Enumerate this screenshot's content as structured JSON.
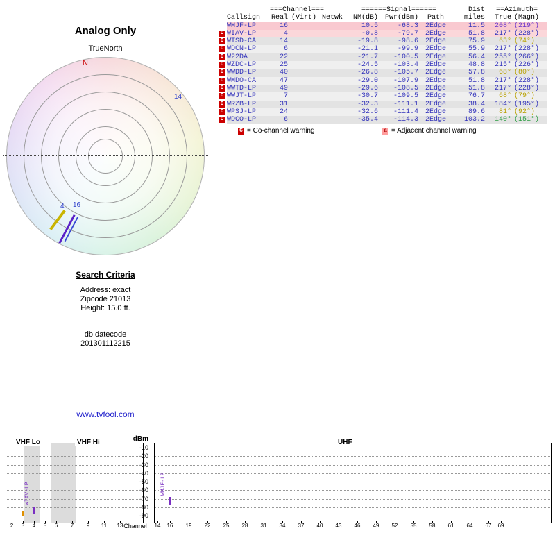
{
  "link_text": "www.tvfool.com",
  "search": {
    "title": "Search Criteria",
    "lines": [
      "Address: exact",
      "Zipcode 21013",
      "Height: 15.0 ft.",
      "",
      "",
      "db datecode",
      "201301112215"
    ]
  },
  "chart_data": [
    {
      "id": "compass",
      "type": "radar",
      "title": "Analog Only",
      "subtitle": "TrueNorth",
      "north_label": "N",
      "rings": 6,
      "markers": [
        {
          "label": "14",
          "azimuth_true_deg": 63,
          "style": "text",
          "color": "#3344cc"
        },
        {
          "label": "4",
          "azimuth_true_deg": 217,
          "style": "line",
          "color": "#c9b400"
        },
        {
          "label": "16",
          "azimuth_true_deg": 208,
          "style": "line",
          "color": "#5b21c8"
        }
      ]
    },
    {
      "id": "stations",
      "type": "table",
      "header_groups": [
        "===Channel===",
        "======Signal======",
        "Dist",
        "==Azimuth="
      ],
      "columns": [
        "Callsign",
        "Real",
        "(Virt)",
        "Netwk",
        "NM(dB)",
        "Pwr(dBm)",
        "Path",
        "miles",
        "True",
        "(Magn)"
      ],
      "rows": [
        {
          "warn": "",
          "callsign": "WMJF-LP",
          "real": "16",
          "virt": "",
          "netwk": "",
          "nm": "10.5",
          "pwr": "-68.3",
          "path": "2Edge",
          "miles": "11.5",
          "true": "208°",
          "magn": "(219°)",
          "bg": "#f9c9d0",
          "az_color": "#6a35cc"
        },
        {
          "warn": "C",
          "callsign": "WIAV-LP",
          "real": "4",
          "virt": "",
          "netwk": "",
          "nm": "-0.8",
          "pwr": "-79.7",
          "path": "2Edge",
          "miles": "51.8",
          "true": "217°",
          "magn": "(228°)",
          "bg": "#fbd7da",
          "az_color": "#3333bb"
        },
        {
          "warn": "C",
          "callsign": "WTSD-CA",
          "real": "14",
          "virt": "",
          "netwk": "",
          "nm": "-19.8",
          "pwr": "-98.6",
          "path": "2Edge",
          "miles": "75.9",
          "true": "63°",
          "magn": "(74°)",
          "bg": "#e3e3e3",
          "az_color": "#b8a000"
        },
        {
          "warn": "C",
          "callsign": "WDCN-LP",
          "real": "6",
          "virt": "",
          "netwk": "",
          "nm": "-21.1",
          "pwr": "-99.9",
          "path": "2Edge",
          "miles": "55.9",
          "true": "217°",
          "magn": "(228°)",
          "bg": "#efefef",
          "az_color": "#3333bb"
        },
        {
          "warn": "C",
          "callsign": "W22DA",
          "real": "22",
          "virt": "",
          "netwk": "",
          "nm": "-21.7",
          "pwr": "-100.5",
          "path": "2Edge",
          "miles": "56.4",
          "true": "255°",
          "magn": "(266°)",
          "bg": "#e3e3e3",
          "az_color": "#3333bb"
        },
        {
          "warn": "C",
          "callsign": "WZDC-LP",
          "real": "25",
          "virt": "",
          "netwk": "",
          "nm": "-24.5",
          "pwr": "-103.4",
          "path": "2Edge",
          "miles": "48.8",
          "true": "215°",
          "magn": "(226°)",
          "bg": "#efefef",
          "az_color": "#3333bb"
        },
        {
          "warn": "C",
          "callsign": "WWDD-LP",
          "real": "40",
          "virt": "",
          "netwk": "",
          "nm": "-26.8",
          "pwr": "-105.7",
          "path": "2Edge",
          "miles": "57.8",
          "true": "68°",
          "magn": "(80°)",
          "bg": "#e3e3e3",
          "az_color": "#b8a000"
        },
        {
          "warn": "C",
          "callsign": "WMDO-CA",
          "real": "47",
          "virt": "",
          "netwk": "",
          "nm": "-29.0",
          "pwr": "-107.9",
          "path": "2Edge",
          "miles": "51.8",
          "true": "217°",
          "magn": "(228°)",
          "bg": "#efefef",
          "az_color": "#3333bb"
        },
        {
          "warn": "C",
          "callsign": "WWTD-LP",
          "real": "49",
          "virt": "",
          "netwk": "",
          "nm": "-29.6",
          "pwr": "-108.5",
          "path": "2Edge",
          "miles": "51.8",
          "true": "217°",
          "magn": "(228°)",
          "bg": "#e3e3e3",
          "az_color": "#3333bb"
        },
        {
          "warn": "C",
          "callsign": "WWJT-LP",
          "real": "7",
          "virt": "",
          "netwk": "",
          "nm": "-30.7",
          "pwr": "-109.5",
          "path": "2Edge",
          "miles": "76.7",
          "true": "68°",
          "magn": "(79°)",
          "bg": "#efefef",
          "az_color": "#b8a000"
        },
        {
          "warn": "C",
          "callsign": "WRZB-LP",
          "real": "31",
          "virt": "",
          "netwk": "",
          "nm": "-32.3",
          "pwr": "-111.1",
          "path": "2Edge",
          "miles": "38.4",
          "true": "184°",
          "magn": "(195°)",
          "bg": "#e3e3e3",
          "az_color": "#3333bb"
        },
        {
          "warn": "C",
          "callsign": "WPSJ-LP",
          "real": "24",
          "virt": "",
          "netwk": "",
          "nm": "-32.6",
          "pwr": "-111.4",
          "path": "2Edge",
          "miles": "89.6",
          "true": "81°",
          "magn": "(92°)",
          "bg": "#efefef",
          "az_color": "#b8a000"
        },
        {
          "warn": "C",
          "callsign": "WDCO-LP",
          "real": "6",
          "virt": "",
          "netwk": "",
          "nm": "-35.4",
          "pwr": "-114.3",
          "path": "2Edge",
          "miles": "103.2",
          "true": "140°",
          "magn": "(151°)",
          "bg": "#e3e3e3",
          "az_color": "#2f9e44"
        }
      ],
      "legend": [
        {
          "badge": "C",
          "badge_bg": "#cc0000",
          "badge_fg": "#ffffff",
          "text": "= Co-channel warning"
        },
        {
          "badge": "a",
          "badge_bg": "#ff9e9e",
          "badge_fg": "#aa0000",
          "text": "= Adjacent channel warning"
        }
      ]
    },
    {
      "id": "spectrum",
      "type": "bar",
      "ylabel": "dBm",
      "xlabel": "Channel",
      "yticks": [
        -10,
        -20,
        -30,
        -40,
        -50,
        -60,
        -70,
        -80,
        -90
      ],
      "panel_titles": [
        "VHF Lo",
        "VHF Hi",
        "UHF"
      ],
      "panels": [
        {
          "name": "vhf",
          "channels": [
            2,
            3,
            4,
            5,
            6,
            7,
            9,
            11,
            13
          ]
        },
        {
          "name": "uhf",
          "channels": [
            14,
            16,
            19,
            22,
            25,
            28,
            31,
            34,
            37,
            40,
            43,
            46,
            49,
            52,
            55,
            58,
            61,
            64,
            67,
            69
          ]
        }
      ],
      "shaded_bands": [
        {
          "panel": "vhf",
          "from_ch": 3.1,
          "to_ch": 4.5
        },
        {
          "panel": "vhf",
          "from_ch": 5.55,
          "to_ch": 7.45
        }
      ],
      "bars": [
        {
          "panel": "vhf",
          "channel": 3,
          "dbm": -84.5,
          "label": "",
          "color": "#e09000"
        },
        {
          "panel": "vhf",
          "channel": 4,
          "dbm": -79.7,
          "label": "WIAV-LP",
          "color": "#7a2fc2"
        },
        {
          "panel": "uhf",
          "channel": 16,
          "dbm": -68.3,
          "label": "WMJF-LP",
          "color": "#7a2fc2"
        }
      ]
    }
  ]
}
